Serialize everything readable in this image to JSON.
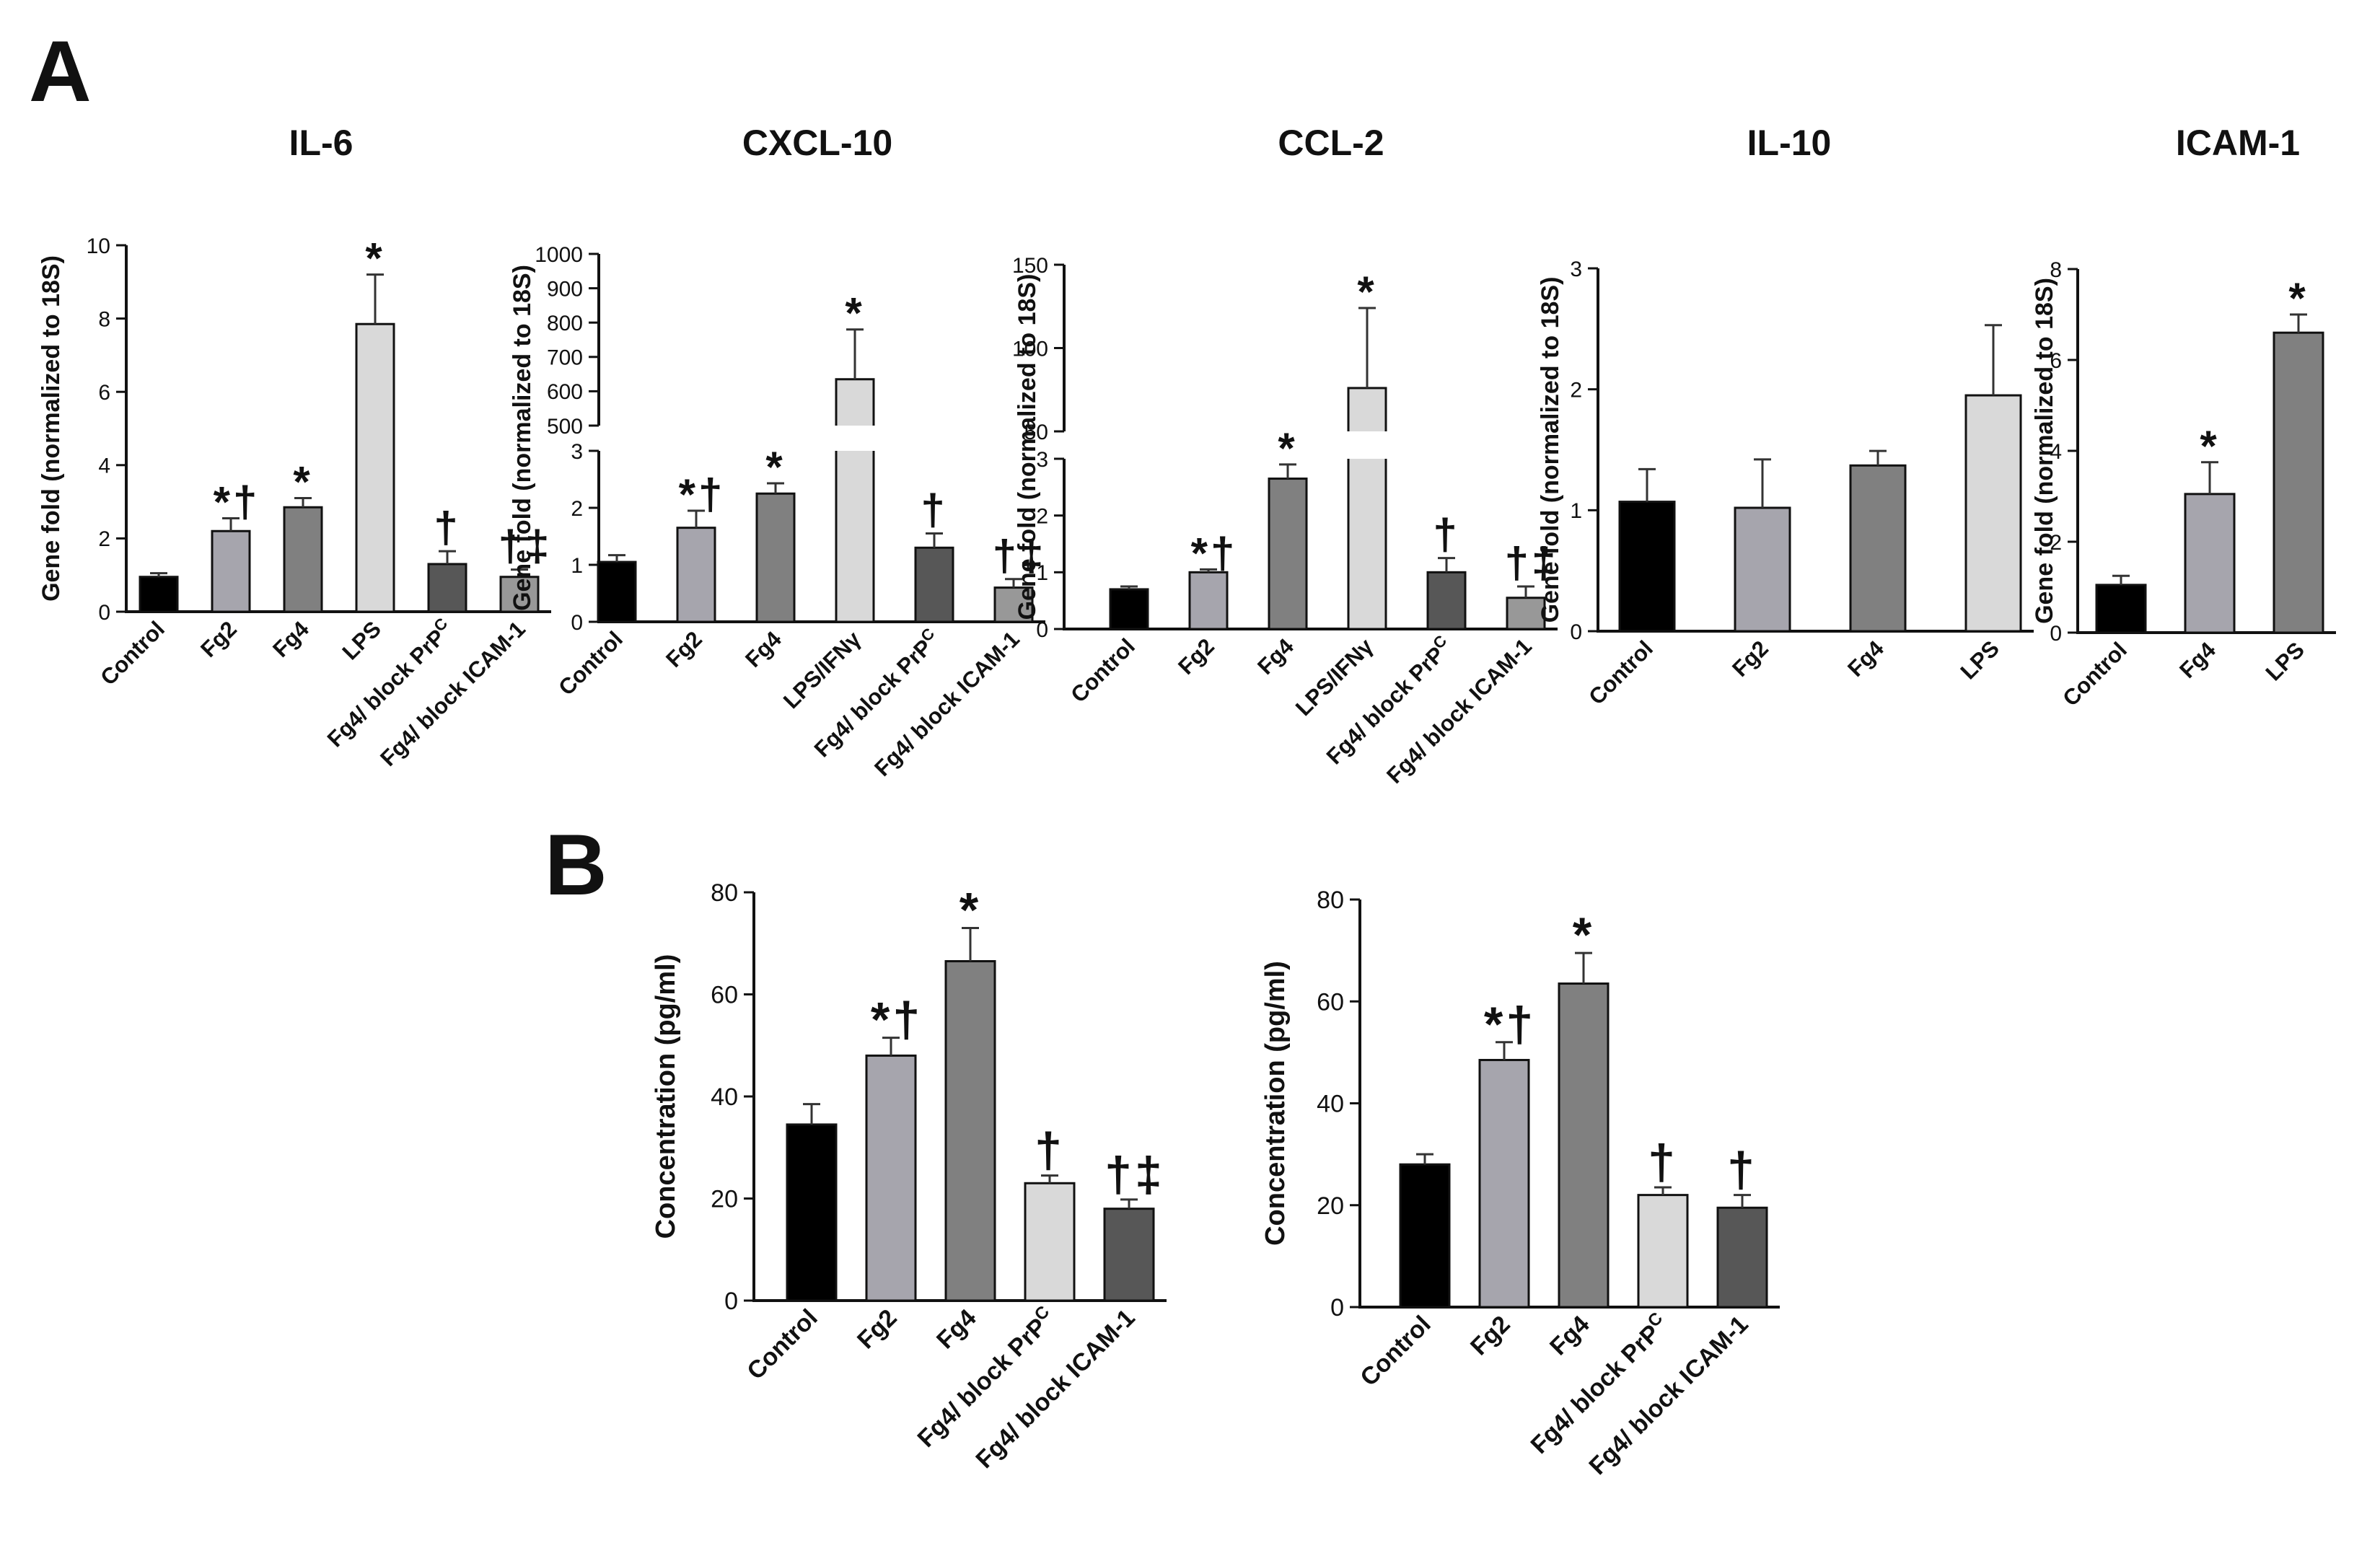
{
  "panel_labels": {
    "A": "A",
    "B": "B"
  },
  "colors": {
    "black": "#000000",
    "light_gray_purple": "#a6a5ad",
    "mid_gray": "#808080",
    "light_gray": "#d9d9d9",
    "dark_gray": "#575757",
    "med_gray": "#989898"
  },
  "chart_data": [
    {
      "id": "il6",
      "type": "bar",
      "panel": "A",
      "title": "IL-6",
      "ylabel": "Gene fold (normalized to 18S)",
      "xlabel": "",
      "categories": [
        "Control",
        "Fg2",
        "Fg4",
        "LPS",
        "Fg4/ block PrP",
        "Fg4/ block ICAM-1"
      ],
      "superscripts": [
        "",
        "",
        "",
        "",
        "C",
        ""
      ],
      "values": [
        0.95,
        2.2,
        2.85,
        7.85,
        1.3,
        0.95
      ],
      "errors": [
        0.1,
        0.35,
        0.25,
        1.35,
        0.35,
        0.2
      ],
      "annotations": [
        "",
        "*†",
        "*",
        "*",
        "†",
        "†‡"
      ],
      "bar_colors": [
        "#000000",
        "#a6a5ad",
        "#808080",
        "#d9d9d9",
        "#575757",
        "#989898"
      ],
      "ylim": [
        0,
        10
      ],
      "yticks": [
        0,
        2,
        4,
        6,
        8,
        10
      ]
    },
    {
      "id": "cxcl10",
      "type": "bar",
      "panel": "A",
      "title": "CXCL-10",
      "ylabel": "Gene fold (normalized to 18S)",
      "xlabel": "",
      "categories": [
        "Control",
        "Fg2",
        "Fg4",
        "LPS/IFNγ",
        "Fg4/ block PrP",
        "Fg4/ block ICAM-1"
      ],
      "superscripts": [
        "",
        "",
        "",
        "",
        "C",
        ""
      ],
      "values": [
        1.05,
        1.65,
        2.25,
        635,
        1.3,
        0.6
      ],
      "errors": [
        0.12,
        0.3,
        0.18,
        145,
        0.25,
        0.15
      ],
      "annotations": [
        "",
        "*†",
        "*",
        "*",
        "†",
        "†‡"
      ],
      "bar_colors": [
        "#000000",
        "#a6a5ad",
        "#808080",
        "#d9d9d9",
        "#575757",
        "#989898"
      ],
      "broken_axis": {
        "lower": [
          0,
          3
        ],
        "upper": [
          500,
          1000
        ]
      },
      "yticks_lower": [
        0,
        1,
        2,
        3
      ],
      "yticks_upper": [
        500,
        600,
        700,
        800,
        900,
        1000
      ]
    },
    {
      "id": "ccl2",
      "type": "bar",
      "panel": "A",
      "title": "CCL-2",
      "ylabel": "Gene fold (normalized to 18S)",
      "xlabel": "",
      "categories": [
        "Control",
        "Fg2",
        "Fg4",
        "LPS/IFNγ",
        "Fg4/ block PrP",
        "Fg4/ block ICAM-1"
      ],
      "superscripts": [
        "",
        "",
        "",
        "",
        "C",
        ""
      ],
      "values": [
        0.7,
        1.0,
        2.65,
        76,
        1.0,
        0.55
      ],
      "errors": [
        0.05,
        0.05,
        0.25,
        48,
        0.25,
        0.2
      ],
      "annotations": [
        "",
        "*†",
        "*",
        "*",
        "†",
        "†‡"
      ],
      "bar_colors": [
        "#000000",
        "#a6a5ad",
        "#808080",
        "#d9d9d9",
        "#575757",
        "#989898"
      ],
      "broken_axis": {
        "lower": [
          0,
          3
        ],
        "upper": [
          50,
          150
        ]
      },
      "yticks_lower": [
        0,
        1,
        2,
        3
      ],
      "yticks_upper": [
        50,
        100,
        150
      ]
    },
    {
      "id": "il10",
      "type": "bar",
      "panel": "A",
      "title": "IL-10",
      "ylabel": "Gene fold (normalized to 18S)",
      "xlabel": "",
      "categories": [
        "Control",
        "Fg2",
        "Fg4",
        "LPS"
      ],
      "superscripts": [
        "",
        "",
        "",
        ""
      ],
      "values": [
        1.07,
        1.02,
        1.37,
        1.95
      ],
      "errors": [
        0.27,
        0.4,
        0.12,
        0.58
      ],
      "annotations": [
        "",
        "",
        "",
        ""
      ],
      "bar_colors": [
        "#000000",
        "#a6a5ad",
        "#808080",
        "#d9d9d9"
      ],
      "ylim": [
        0,
        3
      ],
      "yticks": [
        0,
        1,
        2,
        3
      ]
    },
    {
      "id": "icam1",
      "type": "bar",
      "panel": "A",
      "title": "ICAM-1",
      "ylabel": "Gene fold (normalized to 18S)",
      "xlabel": "",
      "categories": [
        "Control",
        "Fg4",
        "LPS"
      ],
      "superscripts": [
        "",
        "",
        ""
      ],
      "values": [
        1.05,
        3.05,
        6.6
      ],
      "errors": [
        0.2,
        0.7,
        0.4
      ],
      "annotations": [
        "",
        "*",
        "*"
      ],
      "bar_colors": [
        "#000000",
        "#a6a5ad",
        "#808080"
      ],
      "ylim": [
        0,
        8
      ],
      "yticks": [
        0,
        2,
        4,
        6,
        8
      ]
    },
    {
      "id": "conc1",
      "type": "bar",
      "panel": "B",
      "title": "",
      "ylabel": "Concentration (pg/ml)",
      "xlabel": "",
      "categories": [
        "Control",
        "Fg2",
        "Fg4",
        "Fg4/ block PrP",
        "Fg4/ block ICAM-1"
      ],
      "superscripts": [
        "",
        "",
        "",
        "C",
        ""
      ],
      "values": [
        34.5,
        48,
        66.5,
        23,
        18
      ],
      "errors": [
        4,
        3.5,
        6.5,
        1.5,
        1.8
      ],
      "annotations": [
        "",
        "*†",
        "*",
        "†",
        "†‡"
      ],
      "bar_colors": [
        "#000000",
        "#a6a5ad",
        "#808080",
        "#d9d9d9",
        "#575757"
      ],
      "ylim": [
        0,
        80
      ],
      "yticks": [
        0,
        20,
        40,
        60,
        80
      ]
    },
    {
      "id": "conc2",
      "type": "bar",
      "panel": "B",
      "title": "",
      "ylabel": "Concentration (pg/ml)",
      "xlabel": "",
      "categories": [
        "Control",
        "Fg2",
        "Fg4",
        "Fg4/ block PrP",
        "Fg4/ block ICAM-1"
      ],
      "superscripts": [
        "",
        "",
        "",
        "C",
        ""
      ],
      "values": [
        28,
        48.5,
        63.5,
        22,
        19.5
      ],
      "errors": [
        2,
        3.5,
        6,
        1.5,
        2.5
      ],
      "annotations": [
        "",
        "*†",
        "*",
        "†",
        "†"
      ],
      "bar_colors": [
        "#000000",
        "#a6a5ad",
        "#808080",
        "#d9d9d9",
        "#575757"
      ],
      "ylim": [
        0,
        80
      ],
      "yticks": [
        0,
        20,
        40,
        60,
        80
      ]
    }
  ]
}
